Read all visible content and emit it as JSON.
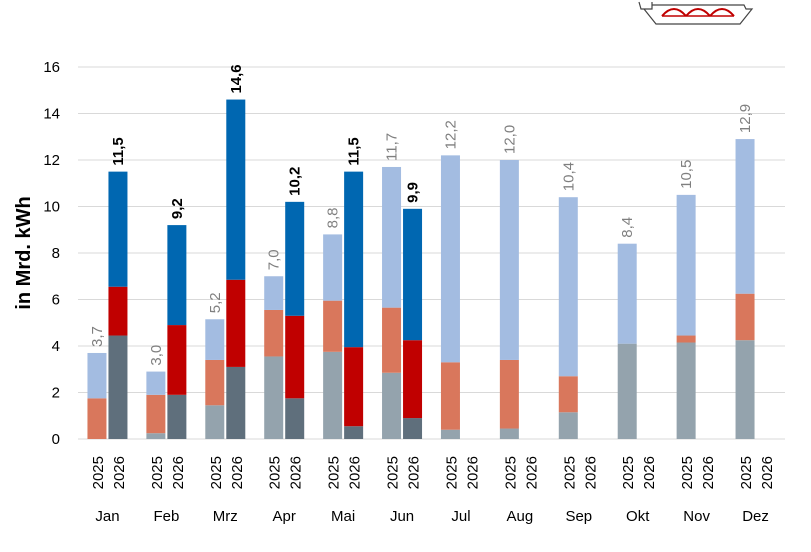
{
  "chart_data": {
    "type": "bar",
    "title": "",
    "ylabel": "in Mrd. kWh",
    "ylim": [
      0,
      16
    ],
    "yticks": [
      "0",
      "2",
      "4",
      "6",
      "8",
      "10",
      "12",
      "14",
      "16"
    ],
    "grid": true,
    "months": [
      "Jan",
      "Feb",
      "Mrz",
      "Apr",
      "Mai",
      "Jun",
      "Jul",
      "Aug",
      "Sep",
      "Okt",
      "Nov",
      "Dez"
    ],
    "years": [
      "2025",
      "2026"
    ],
    "colors": {
      "2025": [
        "#94a3ad",
        "#d9775c",
        "#a3bce1"
      ],
      "2026": [
        "#5f6f7c",
        "#c00000",
        "#0067b1"
      ]
    },
    "bars_2025": [
      {
        "segments": [
          0.0,
          1.75,
          1.95
        ],
        "total_label": "3,7"
      },
      {
        "segments": [
          0.25,
          1.65,
          1.0
        ],
        "total_label": "3,0"
      },
      {
        "segments": [
          1.45,
          1.95,
          1.75
        ],
        "total_label": "5,2"
      },
      {
        "segments": [
          3.55,
          2.0,
          1.45
        ],
        "total_label": "7,0"
      },
      {
        "segments": [
          3.75,
          2.2,
          2.85
        ],
        "total_label": "8,8"
      },
      {
        "segments": [
          2.85,
          2.8,
          6.05
        ],
        "total_label": "11,7"
      },
      {
        "segments": [
          0.4,
          2.9,
          8.9
        ],
        "total_label": "12,2"
      },
      {
        "segments": [
          0.45,
          2.95,
          8.6
        ],
        "total_label": "12,0"
      },
      {
        "segments": [
          1.15,
          1.55,
          7.7
        ],
        "total_label": "10,4"
      },
      {
        "segments": [
          4.1,
          0.0,
          4.3
        ],
        "total_label": "8,4"
      },
      {
        "segments": [
          4.15,
          0.3,
          6.05
        ],
        "total_label": "10,5"
      },
      {
        "segments": [
          4.25,
          2.0,
          6.65
        ],
        "total_label": "12,9"
      }
    ],
    "bars_2026": [
      {
        "segments": [
          4.45,
          2.1,
          4.95
        ],
        "total_label": "11,5"
      },
      {
        "segments": [
          1.9,
          3.0,
          4.3
        ],
        "total_label": "9,2"
      },
      {
        "segments": [
          3.1,
          3.75,
          7.75
        ],
        "total_label": "14,6"
      },
      {
        "segments": [
          1.75,
          3.55,
          4.9
        ],
        "total_label": "10,2"
      },
      {
        "segments": [
          0.55,
          3.4,
          7.55
        ],
        "total_label": "11,5"
      },
      {
        "segments": [
          0.9,
          3.35,
          5.65
        ],
        "total_label": "9,9"
      }
    ]
  }
}
